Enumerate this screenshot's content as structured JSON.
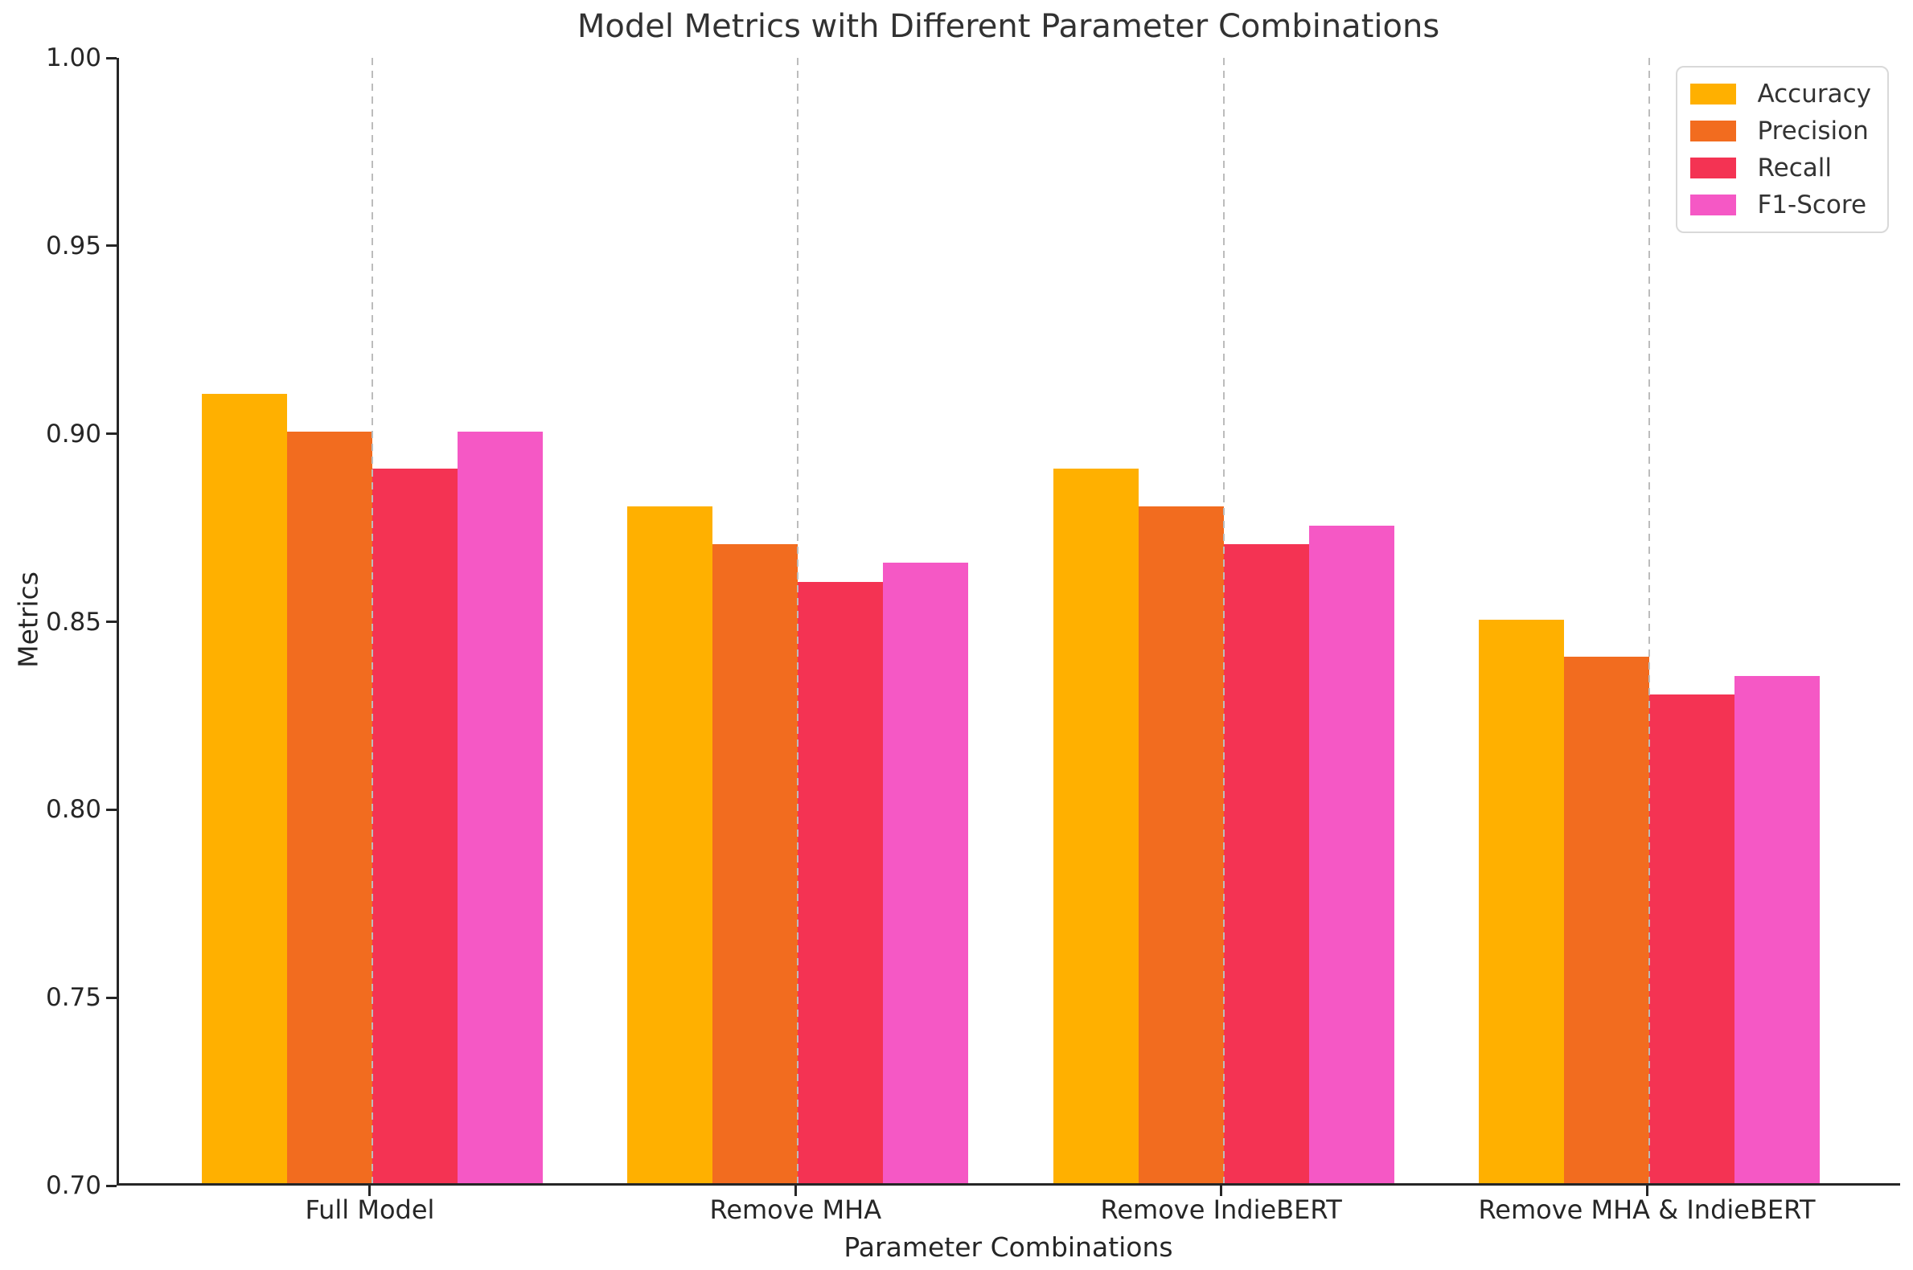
{
  "chart_data": {
    "type": "bar",
    "title": "Model Metrics with Different Parameter Combinations",
    "xlabel": "Parameter Combinations",
    "ylabel": "Metrics",
    "categories": [
      "Full Model",
      "Remove MHA",
      "Remove IndieBERT",
      "Remove MHA & IndieBERT"
    ],
    "series": [
      {
        "name": "Accuracy",
        "color": "#FFB000",
        "values": [
          0.91,
          0.88,
          0.89,
          0.85
        ]
      },
      {
        "name": "Precision",
        "color": "#F26C1F",
        "values": [
          0.9,
          0.87,
          0.88,
          0.84
        ]
      },
      {
        "name": "Recall",
        "color": "#F43353",
        "values": [
          0.89,
          0.86,
          0.87,
          0.83
        ]
      },
      {
        "name": "F1-Score",
        "color": "#F558C5",
        "values": [
          0.9,
          0.865,
          0.875,
          0.835
        ]
      }
    ],
    "ylim": [
      0.7,
      1.0
    ],
    "ytick_labels": [
      "0.70",
      "0.75",
      "0.80",
      "0.85",
      "0.90",
      "0.95",
      "1.00"
    ],
    "grid": "vertical dashed lines at category centers, drawn over bars",
    "legend_position": "upper right",
    "axis_color": "#262626",
    "gridline_color": "#bcbcbc"
  }
}
